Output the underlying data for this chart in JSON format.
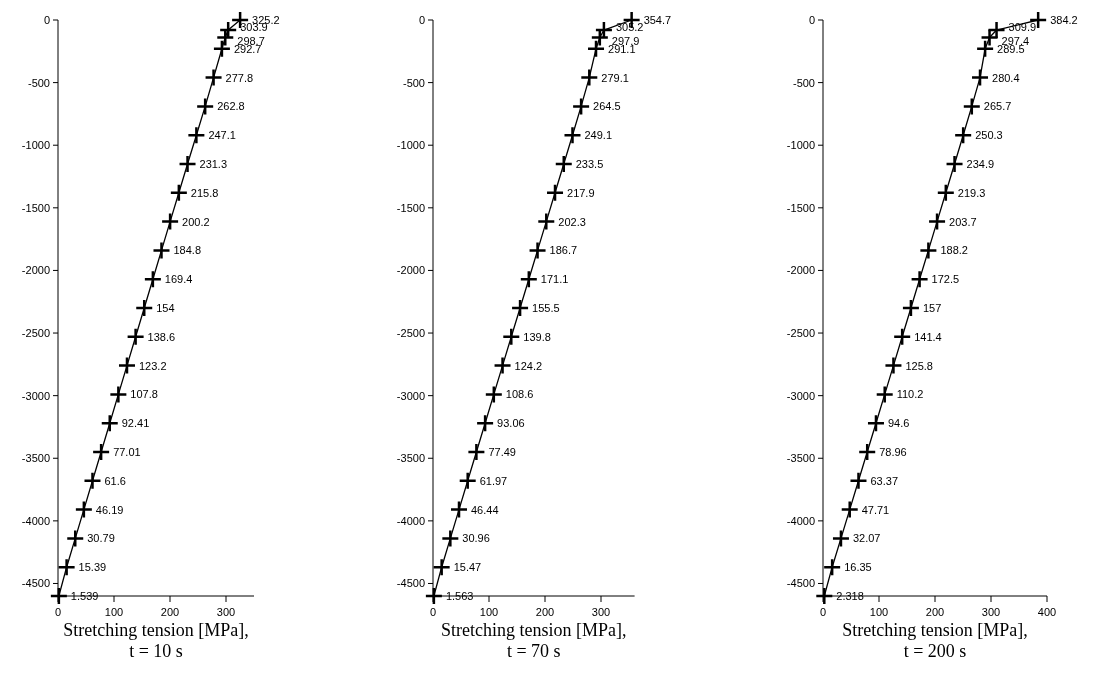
{
  "chart_data": [
    {
      "type": "line",
      "xlabel": "Stretching tension [MPa],\nt = 10 s",
      "marker": "cross",
      "grid": false,
      "xlim": [
        0,
        350
      ],
      "xticks": [
        0,
        100,
        200,
        300
      ],
      "ylim": [
        -4600,
        0
      ],
      "yticks": [
        0,
        -500,
        -1000,
        -1500,
        -2000,
        -2500,
        -3000,
        -3500,
        -4000,
        -4500
      ],
      "orientation": "horizontal",
      "series": [
        {
          "color": "#000000",
          "values": [
            325.2,
            303.9,
            298.7,
            292.7,
            277.8,
            262.8,
            247.1,
            231.3,
            215.8,
            200.2,
            184.8,
            169.4,
            154,
            138.6,
            123.2,
            107.8,
            92.41,
            77.01,
            61.6,
            46.19,
            30.79,
            15.39,
            1.539
          ],
          "x": [
            0,
            -80,
            -140,
            -230,
            -460,
            -690,
            -920,
            -1150,
            -1380,
            -1610,
            -1840,
            -2070,
            -2300,
            -2530,
            -2760,
            -2990,
            -3220,
            -3450,
            -3680,
            -3910,
            -4140,
            -4370,
            -4600
          ],
          "value_labels": [
            "325.2",
            "303.9",
            "298.7",
            "292.7",
            "277.8",
            "262.8",
            "247.1",
            "231.3",
            "215.8",
            "200.2",
            "184.8",
            "169.4",
            "154",
            "138.6",
            "123.2",
            "107.8",
            "92.41",
            "77.01",
            "61.6",
            "46.19",
            "30.79",
            "15.39",
            "1.539"
          ]
        }
      ]
    },
    {
      "type": "line",
      "xlabel": "Stretching tension [MPa],\nt = 70 s",
      "marker": "cross",
      "grid": false,
      "xlim": [
        0,
        360
      ],
      "xticks": [
        0,
        100,
        200,
        300
      ],
      "ylim": [
        -4600,
        0
      ],
      "yticks": [
        0,
        -500,
        -1000,
        -1500,
        -2000,
        -2500,
        -3000,
        -3500,
        -4000,
        -4500
      ],
      "orientation": "horizontal",
      "series": [
        {
          "color": "#000000",
          "values": [
            354.7,
            305.2,
            297.9,
            291.1,
            279.1,
            264.5,
            249.1,
            233.5,
            217.9,
            202.3,
            186.7,
            171.1,
            155.5,
            139.8,
            124.2,
            108.6,
            93.06,
            77.49,
            61.97,
            46.44,
            30.96,
            15.47,
            1.563
          ],
          "x": [
            0,
            -80,
            -140,
            -230,
            -460,
            -690,
            -920,
            -1150,
            -1380,
            -1610,
            -1840,
            -2070,
            -2300,
            -2530,
            -2760,
            -2990,
            -3220,
            -3450,
            -3680,
            -3910,
            -4140,
            -4370,
            -4600
          ],
          "value_labels": [
            "354.7",
            "305.2",
            "297.9",
            "291.1",
            "279.1",
            "264.5",
            "249.1",
            "233.5",
            "217.9",
            "202.3",
            "186.7",
            "171.1",
            "155.5",
            "139.8",
            "124.2",
            "108.6",
            "93.06",
            "77.49",
            "61.97",
            "46.44",
            "30.96",
            "15.47",
            "1.563"
          ]
        }
      ]
    },
    {
      "type": "line",
      "xlabel": "Stretching tension [MPa],\nt = 200 s",
      "marker": "cross",
      "grid": false,
      "xlim": [
        0,
        400
      ],
      "xticks": [
        0,
        100,
        200,
        300,
        400
      ],
      "ylim": [
        -4600,
        0
      ],
      "yticks": [
        0,
        -500,
        -1000,
        -1500,
        -2000,
        -2500,
        -3000,
        -3500,
        -4000,
        -4500
      ],
      "orientation": "horizontal",
      "series": [
        {
          "color": "#000000",
          "values": [
            384.2,
            309.9,
            297.4,
            289.5,
            280.4,
            265.7,
            250.3,
            234.9,
            219.3,
            203.7,
            188.2,
            172.5,
            157,
            141.4,
            125.8,
            110.2,
            94.6,
            78.96,
            63.37,
            47.71,
            32.07,
            16.35,
            2.318
          ],
          "x": [
            0,
            -80,
            -140,
            -230,
            -460,
            -690,
            -920,
            -1150,
            -1380,
            -1610,
            -1840,
            -2070,
            -2300,
            -2530,
            -2760,
            -2990,
            -3220,
            -3450,
            -3680,
            -3910,
            -4140,
            -4370,
            -4600
          ],
          "value_labels": [
            "384.2",
            "309.9",
            "297.4",
            "289.5",
            "280.4",
            "265.7",
            "250.3",
            "234.9",
            "219.3",
            "203.7",
            "188.2",
            "172.5",
            "157",
            "141.4",
            "125.8",
            "110.2",
            "94.6",
            "78.96",
            "63.37",
            "47.71",
            "32.07",
            "16.35",
            "2.318"
          ]
        }
      ]
    }
  ]
}
